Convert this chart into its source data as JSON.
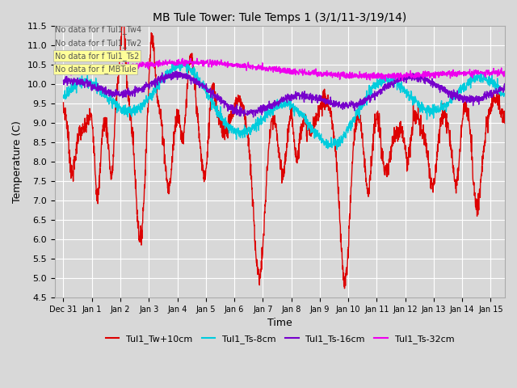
{
  "title": "MB Tule Tower: Tule Temps 1 (3/1/11-3/19/14)",
  "xlabel": "Time",
  "ylabel": "Temperature (C)",
  "ylim": [
    4.5,
    11.5
  ],
  "xlim_days": [
    -0.3,
    15.5
  ],
  "x_tick_labels": [
    "Dec 31",
    "Jan 1",
    "Jan 2",
    "Jan 3",
    "Jan 4",
    "Jan 5",
    "Jan 6",
    "Jan 7",
    "Jan 8",
    "Jan 9",
    "Jan 10",
    "Jan 11",
    "Jan 12",
    "Jan 13",
    "Jan 14",
    "Jan 15"
  ],
  "no_data_texts": [
    "No data for f Tul1_Tw4",
    "No data for f Tul1_Tw2",
    "No data for f Tul1_Ts2",
    "No data for f_MBTule"
  ],
  "series": [
    {
      "label": "Tul1_Tw+10cm",
      "color": "#dd0000",
      "linewidth": 1.0
    },
    {
      "label": "Tul1_Ts-8cm",
      "color": "#00ccdd",
      "linewidth": 1.0
    },
    {
      "label": "Tul1_Ts-16cm",
      "color": "#7700cc",
      "linewidth": 1.0
    },
    {
      "label": "Tul1_Ts-32cm",
      "color": "#ee00ee",
      "linewidth": 1.0
    }
  ],
  "bg_color": "#d8d8d8",
  "plot_bg_color": "#d8d8d8",
  "grid_color": "#ffffff",
  "annotation_bg": "#ffff99",
  "yticks": [
    4.5,
    5.0,
    5.5,
    6.0,
    6.5,
    7.0,
    7.5,
    8.0,
    8.5,
    9.0,
    9.5,
    10.0,
    10.5,
    11.0,
    11.5
  ]
}
